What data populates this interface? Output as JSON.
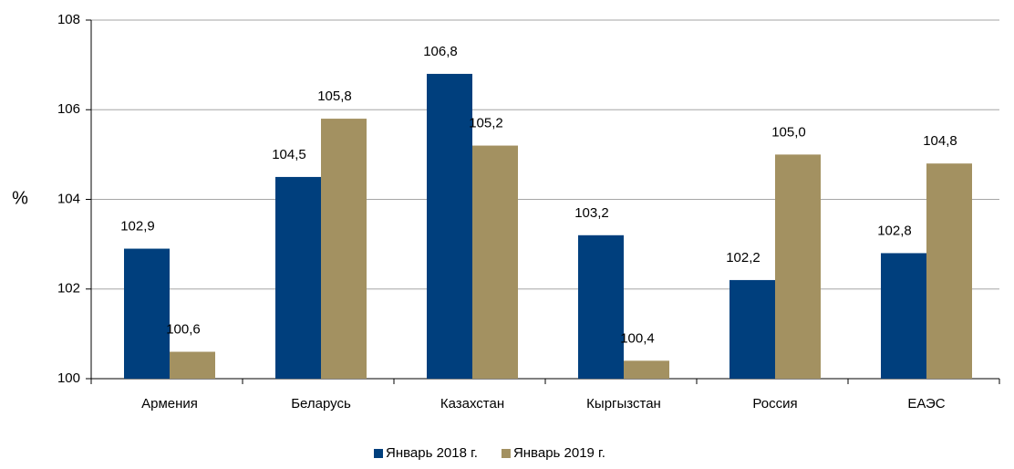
{
  "chart_data": {
    "type": "bar",
    "ylabel": "%",
    "categories": [
      "Армения",
      "Беларусь",
      "Казахстан",
      "Кыргызстан",
      "Россия",
      "ЕАЭС"
    ],
    "series": [
      {
        "name": "Январь 2018 г.",
        "color": "#003f7d",
        "values": [
          102.9,
          104.5,
          106.8,
          103.2,
          102.2,
          102.8
        ],
        "value_labels": [
          "102,9",
          "104,5",
          "106,8",
          "103,2",
          "102,2",
          "102,8"
        ]
      },
      {
        "name": "Январь 2019 г.",
        "color": "#a39161",
        "values": [
          100.6,
          105.8,
          105.2,
          100.4,
          105.0,
          104.8
        ],
        "value_labels": [
          "100,6",
          "105,8",
          "105,2",
          "100,4",
          "105,0",
          "104,8"
        ]
      }
    ],
    "ylim": [
      100,
      108
    ],
    "yticks": [
      100,
      102,
      104,
      106,
      108
    ],
    "grid": true,
    "legend": "bottom"
  }
}
